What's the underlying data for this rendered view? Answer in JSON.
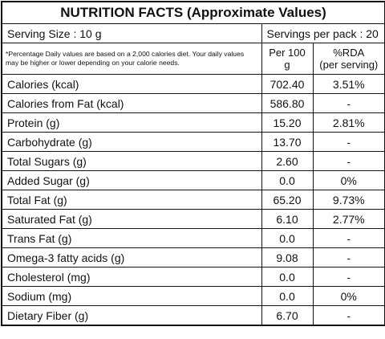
{
  "header": {
    "title": "NUTRITION FACTS (Approximate Values)",
    "serving_size": "Serving Size : 10 g",
    "servings_per_pack": "Servings per pack : 20",
    "note": "*Percentage Daily values are based on a 2,000 calories diet. Your daily values may be higher or lower depending on your calorie needs."
  },
  "table": {
    "columns": [
      "Per 100 g",
      "%RDA\n(per serving)"
    ],
    "rows": [
      [
        "Calories (kcal)",
        "702.40",
        "3.51%"
      ],
      [
        "Calories from Fat (kcal)",
        "586.80",
        "-"
      ],
      [
        "Protein (g)",
        "15.20",
        "2.81%"
      ],
      [
        "Carbohydrate (g)",
        "13.70",
        "-"
      ],
      [
        "Total Sugars (g)",
        "2.60",
        "-"
      ],
      [
        "Added Sugar (g)",
        "0.0",
        "0%"
      ],
      [
        "Total Fat (g)",
        "65.20",
        "9.73%"
      ],
      [
        "Saturated Fat (g)",
        "6.10",
        "2.77%"
      ],
      [
        "Trans Fat (g)",
        "0.0",
        "-"
      ],
      [
        "Omega-3 fatty acids (g)",
        "9.08",
        "-"
      ],
      [
        "Cholesterol (mg)",
        "0.0",
        "-"
      ],
      [
        "Sodium (mg)",
        "0.0",
        "0%"
      ],
      [
        "Dietary Fiber (g)",
        "6.70",
        "-"
      ]
    ]
  }
}
